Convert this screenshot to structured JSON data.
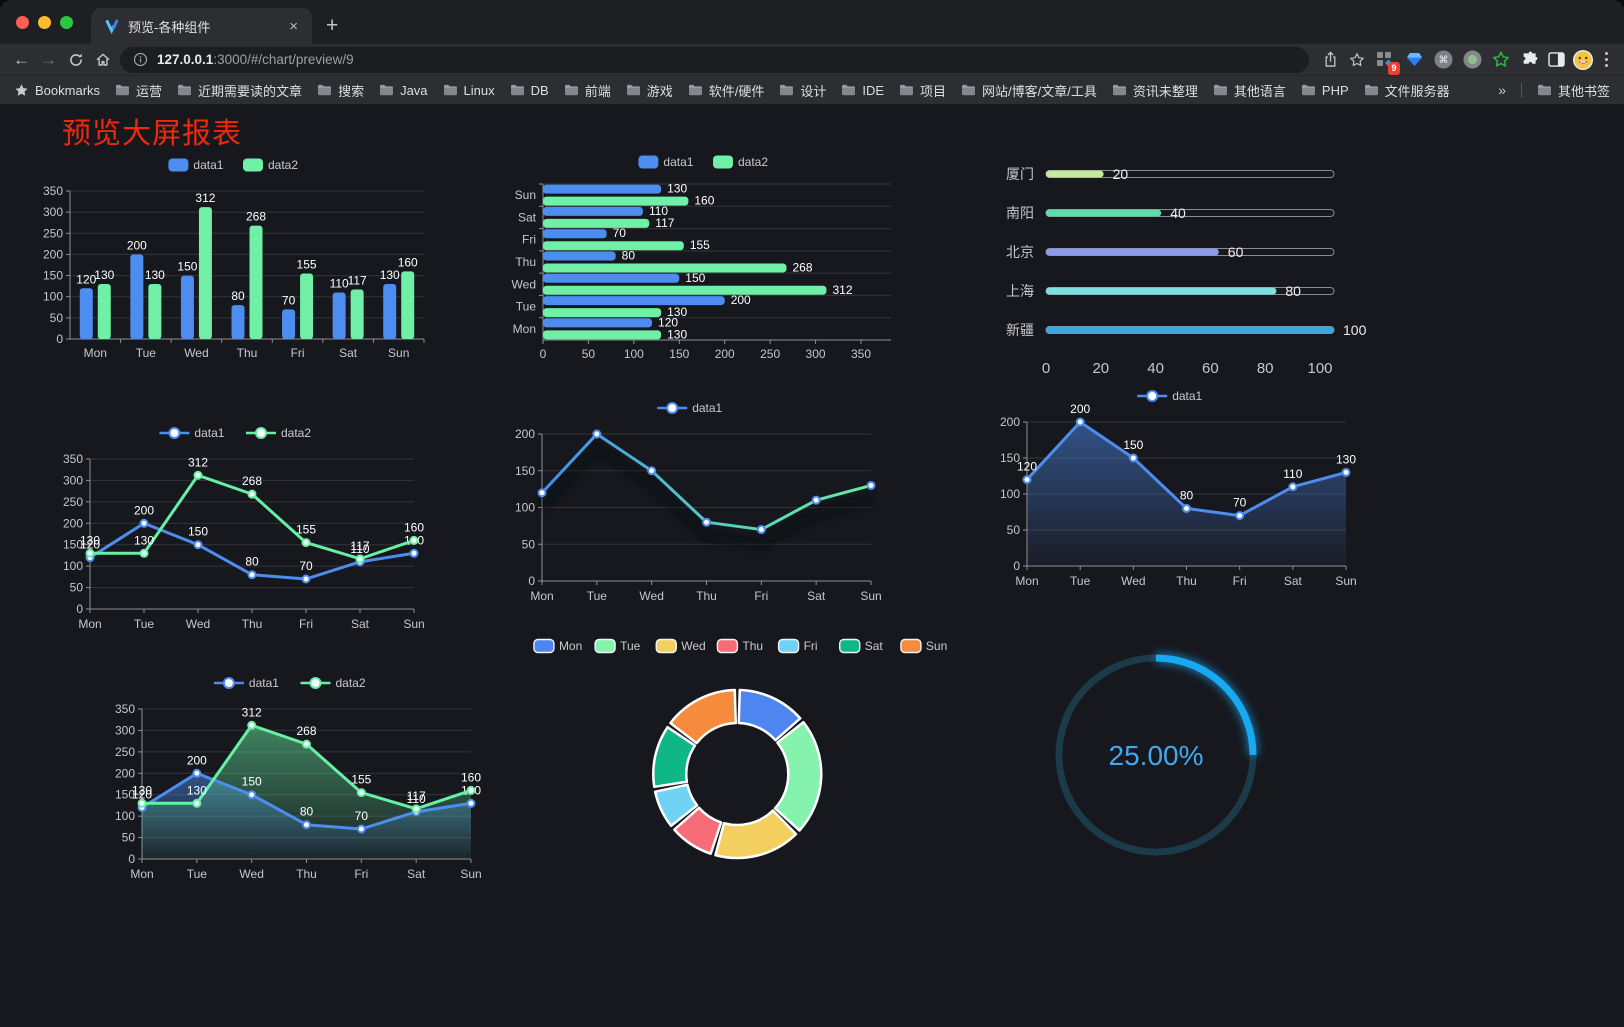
{
  "browser": {
    "tab": {
      "title": "预览-各种组件",
      "close": "×"
    },
    "new_tab_label": "+",
    "url": {
      "host": "127.0.0.1",
      "rest": ":3000/#/chart/preview/9"
    },
    "extension_badge": "9",
    "bookmarks_label": "Bookmarks",
    "bookmarks": [
      "运营",
      "近期需要读的文章",
      "搜索",
      "Java",
      "Linux",
      "DB",
      "前端",
      "游戏",
      "软件/硬件",
      "设计",
      "IDE",
      "项目",
      "网站/博客/文章/工具",
      "资讯未整理",
      "其他语言",
      "PHP",
      "文件服务器"
    ],
    "bookmarks_overflow": "»",
    "other_bookmarks": "其他书签"
  },
  "page": {
    "title": "预览大屏报表",
    "title_color": "#F1280C",
    "background": "#17181E"
  },
  "chart_data": [
    {
      "id": "bar-vertical",
      "type": "bar",
      "categories": [
        "Mon",
        "Tue",
        "Wed",
        "Thu",
        "Fri",
        "Sat",
        "Sun"
      ],
      "series": [
        {
          "name": "data1",
          "color": "#4D8DF0",
          "values": [
            120,
            200,
            150,
            80,
            70,
            110,
            130
          ]
        },
        {
          "name": "data2",
          "color": "#6FF0A6",
          "values": [
            130,
            130,
            312,
            268,
            155,
            117,
            160
          ]
        }
      ],
      "ylim": [
        0,
        350
      ],
      "ytick_step": 50,
      "legend_position": "top",
      "grid": true
    },
    {
      "id": "bar-horizontal",
      "type": "bar-horizontal",
      "categories": [
        "Mon",
        "Tue",
        "Wed",
        "Thu",
        "Fri",
        "Sat",
        "Sun"
      ],
      "display_order_top_to_bottom": [
        "Sun",
        "Sat",
        "Fri",
        "Thu",
        "Wed",
        "Tue",
        "Mon"
      ],
      "series": [
        {
          "name": "data1",
          "color": "#4D8DF0",
          "values": [
            120,
            200,
            150,
            80,
            70,
            110,
            130
          ]
        },
        {
          "name": "data2",
          "color": "#6FF0A6",
          "values": [
            130,
            130,
            312,
            268,
            155,
            117,
            160
          ]
        }
      ],
      "xlim": [
        0,
        350
      ],
      "xtick_step": 50,
      "legend_position": "top",
      "grid": true
    },
    {
      "id": "progress-bars",
      "type": "progress",
      "items": [
        {
          "label": "厦门",
          "value": 20,
          "color": "#C9E9A1"
        },
        {
          "label": "南阳",
          "value": 40,
          "color": "#5EDDAB"
        },
        {
          "label": "北京",
          "value": 60,
          "color": "#8C9CEA"
        },
        {
          "label": "上海",
          "value": 80,
          "color": "#7FE0E2"
        },
        {
          "label": "新疆",
          "value": 100,
          "color": "#3DA6DF"
        }
      ],
      "max": 100,
      "xticks": [
        0,
        20,
        40,
        60,
        80,
        100
      ]
    },
    {
      "id": "line-two-series",
      "type": "line",
      "categories": [
        "Mon",
        "Tue",
        "Wed",
        "Thu",
        "Fri",
        "Sat",
        "Sun"
      ],
      "series": [
        {
          "name": "data1",
          "color": "#4D8DF0",
          "values": [
            120,
            200,
            150,
            80,
            70,
            110,
            130
          ]
        },
        {
          "name": "data2",
          "color": "#67EFA3",
          "values": [
            130,
            130,
            312,
            268,
            155,
            117,
            160
          ]
        }
      ],
      "ylim": [
        0,
        350
      ],
      "ytick_step": 50,
      "legend_position": "top",
      "grid": true
    },
    {
      "id": "line-gradient",
      "type": "line",
      "categories": [
        "Mon",
        "Tue",
        "Wed",
        "Thu",
        "Fri",
        "Sat",
        "Sun"
      ],
      "series": [
        {
          "name": "data1",
          "color": "#4D8DF0",
          "gradient": [
            "#3E8CF2",
            "#52CCC2",
            "#65EFA1"
          ],
          "values": [
            120,
            200,
            150,
            80,
            70,
            110,
            130
          ],
          "labels": false
        }
      ],
      "ylim": [
        0,
        200
      ],
      "ytick_step": 50,
      "legend_position": "top",
      "grid": true,
      "shadow": true
    },
    {
      "id": "line-area",
      "type": "line",
      "categories": [
        "Mon",
        "Tue",
        "Wed",
        "Thu",
        "Fri",
        "Sat",
        "Sun"
      ],
      "series": [
        {
          "name": "data1",
          "color": "#4D8DF0",
          "area": true,
          "values": [
            120,
            200,
            150,
            80,
            70,
            110,
            130
          ]
        }
      ],
      "ylim": [
        0,
        200
      ],
      "ytick_step": 50,
      "legend_position": "top",
      "grid": true
    },
    {
      "id": "line-area-two-series",
      "type": "line",
      "categories": [
        "Mon",
        "Tue",
        "Wed",
        "Thu",
        "Fri",
        "Sat",
        "Sun"
      ],
      "series": [
        {
          "name": "data1",
          "color": "#4D8DF0",
          "area": true,
          "values": [
            120,
            200,
            150,
            80,
            70,
            110,
            130
          ]
        },
        {
          "name": "data2",
          "color": "#67EFA3",
          "area": true,
          "values": [
            130,
            130,
            312,
            268,
            155,
            117,
            160
          ]
        }
      ],
      "ylim": [
        0,
        350
      ],
      "ytick_step": 50,
      "legend_position": "top",
      "grid": true
    },
    {
      "id": "pie-donut",
      "type": "pie",
      "categories": [
        "Mon",
        "Tue",
        "Wed",
        "Thu",
        "Fri",
        "Sat",
        "Sun"
      ],
      "values": [
        120,
        200,
        150,
        80,
        70,
        110,
        130
      ],
      "colors": [
        "#4D86F0",
        "#85F2AD",
        "#F2CF5E",
        "#F66D78",
        "#70D2F5",
        "#0FB687",
        "#F68B3D"
      ],
      "legend_position": "top",
      "inner_radius": 51,
      "outer_radius": 84
    },
    {
      "id": "gauge-ring",
      "type": "gauge",
      "value": 25,
      "label": "25.00%",
      "color": "#19A8F2",
      "track_color": "#1B3B49",
      "text_color": "#3FA9F2"
    }
  ]
}
